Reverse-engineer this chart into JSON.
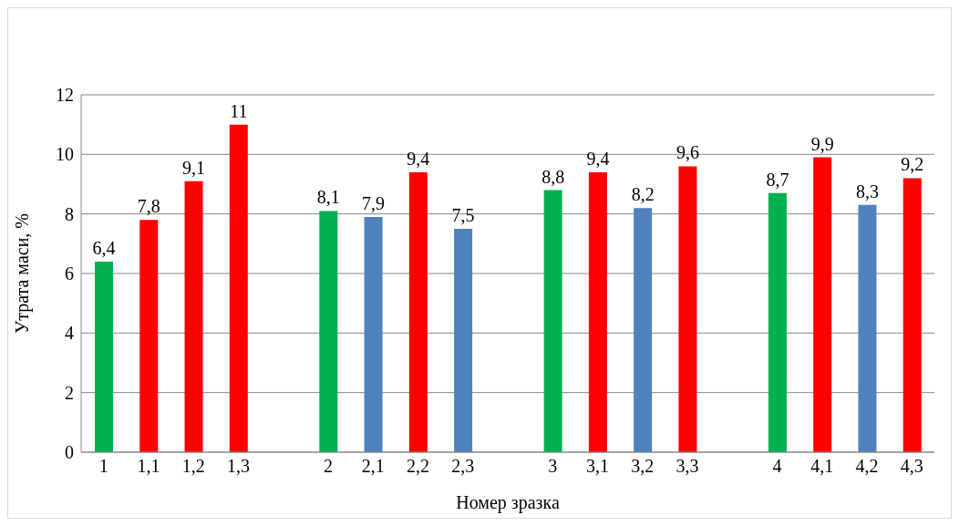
{
  "chart_data": {
    "type": "bar",
    "xlabel": "Номер зразка",
    "ylabel": "Утрата маси, %",
    "categories": [
      "1",
      "1,1",
      "1,2",
      "1,3",
      null,
      "2",
      "2,1",
      "2,2",
      "2,3",
      null,
      "3",
      "3,1",
      "3,2",
      "3,3",
      null,
      "4",
      "4,1",
      "4,2",
      "4,3"
    ],
    "values": [
      6.4,
      7.8,
      9.1,
      11,
      null,
      8.1,
      7.9,
      9.4,
      7.5,
      null,
      8.8,
      9.4,
      8.2,
      9.6,
      null,
      8.7,
      9.9,
      8.3,
      9.2
    ],
    "colors": [
      "#00b050",
      "#ff0000",
      "#ff0000",
      "#ff0000",
      "#ffffff",
      "#00b050",
      "#4f81bd",
      "#ff0000",
      "#4f81bd",
      "#ffffff",
      "#00b050",
      "#ff0000",
      "#4f81bd",
      "#ff0000",
      "#ffffff",
      "#00b050",
      "#ff0000",
      "#4f81bd",
      "#ff0000"
    ],
    "value_labels": [
      "6,4",
      "7,8",
      "9,1",
      "11",
      null,
      "8,1",
      "7,9",
      "9,4",
      "7,5",
      null,
      "8,8",
      "9,4",
      "8,2",
      "9,6",
      null,
      "8,7",
      "9,9",
      "8,3",
      "9,2"
    ],
    "ylim": [
      0,
      12
    ],
    "yticks": [
      0,
      2,
      4,
      6,
      8,
      10,
      12
    ],
    "grid": "y"
  }
}
